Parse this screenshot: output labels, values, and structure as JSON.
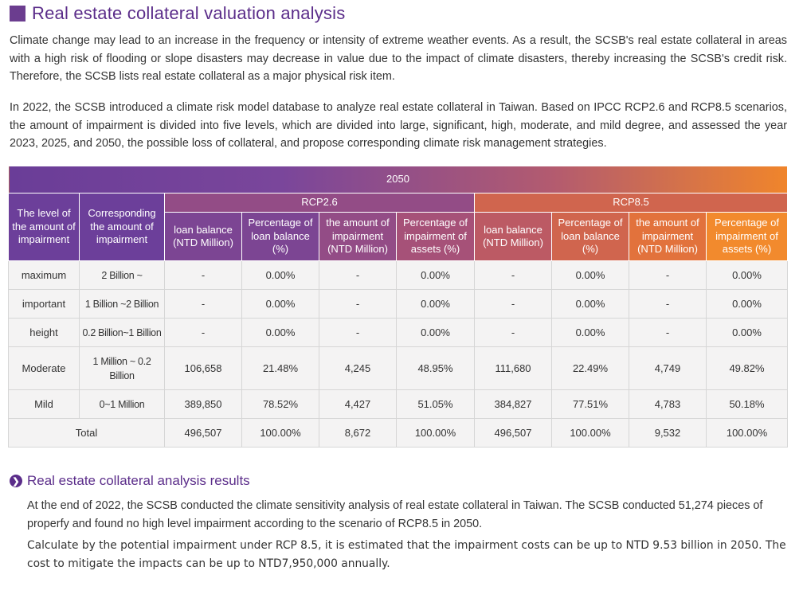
{
  "title": "Real estate collateral valuation analysis",
  "intro": [
    "Climate change may lead to an increase in the frequency or intensity of extreme weather events. As a result, the SCSB's real estate collateral in areas with a high risk of flooding or slope disasters may decrease in value due to the impact of climate disasters, thereby increasing the SCSB's credit risk. Therefore, the SCSB lists real estate collateral as a major physical risk item.",
    "In 2022, the SCSB introduced a climate risk model database to analyze real estate collateral in Taiwan. Based on IPCC RCP2.6 and RCP8.5 scenarios, the amount of impairment is divided into five levels, which are divided into large, significant, high, moderate, and mild degree, and assessed the year 2023, 2025, and 2050, the possible loss of collateral, and propose corresponding climate risk management strategies."
  ],
  "table": {
    "year": "2050",
    "col_level": "The level of the amount of impairment",
    "col_corresponding": "Corresponding the amount of impairment",
    "scenario_a": "RCP2.6",
    "scenario_b": "RCP8.5",
    "sub_headers": [
      "loan balance (NTD Million)",
      "Percentage of loan balance (%)",
      "the amount of impairment (NTD Million)",
      "Percentage of impairment of assets (%)"
    ],
    "rows": [
      {
        "level": "maximum",
        "range": "2 Billion ~",
        "cells": [
          "-",
          "0.00%",
          "-",
          "0.00%",
          "-",
          "0.00%",
          "-",
          "0.00%"
        ]
      },
      {
        "level": "important",
        "range": "1 Billion ~2 Billion",
        "cells": [
          "-",
          "0.00%",
          "-",
          "0.00%",
          "-",
          "0.00%",
          "-",
          "0.00%"
        ]
      },
      {
        "level": "height",
        "range": "0.2 Billion~1 Billion",
        "cells": [
          "-",
          "0.00%",
          "-",
          "0.00%",
          "-",
          "0.00%",
          "-",
          "0.00%"
        ]
      },
      {
        "level": "Moderate",
        "range": "1 Million ~ 0.2 Billion",
        "cells": [
          "106,658",
          "21.48%",
          "4,245",
          "48.95%",
          "111,680",
          "22.49%",
          "4,749",
          "49.82%"
        ]
      },
      {
        "level": "Mild",
        "range": "0~1 Million",
        "cells": [
          "389,850",
          "78.52%",
          "4,427",
          "51.05%",
          "384,827",
          "77.51%",
          "4,783",
          "50.18%"
        ]
      }
    ],
    "total": {
      "label": "Total",
      "cells": [
        "496,507",
        "100.00%",
        "8,672",
        "100.00%",
        "496,507",
        "100.00%",
        "9,532",
        "100.00%"
      ]
    }
  },
  "results": {
    "icon": "chevron-right-circle-icon",
    "heading": "Real estate collateral analysis results",
    "paragraphs": [
      "At the end of 2022, the SCSB conducted the climate sensitivity analysis of real estate collateral in Taiwan. The SCSB conducted 51,274 pieces of properfy and found no high level impairment according to the scenario of RCP8.5 in 2050.",
      "Calculate by the potential impairment under RCP 8.5, it is estimated that the impairment costs can be up to NTD 9.53 billion in 2050. The cost to mitigate the impacts can be up to NTD7,950,000 annually."
    ]
  },
  "colors": {
    "accent_purple": "#5b2d8a",
    "accent_orange": "#f28a2d"
  }
}
